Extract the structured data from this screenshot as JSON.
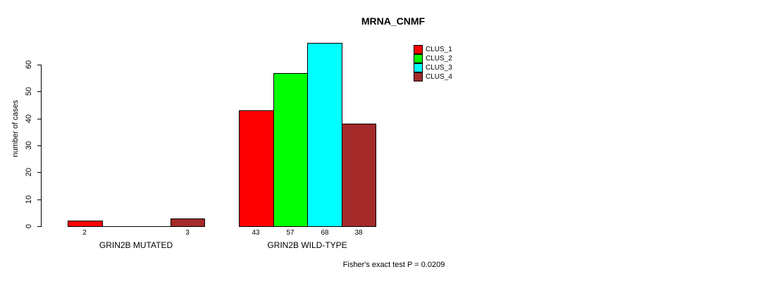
{
  "chart_data": {
    "type": "bar",
    "title": "MRNA_CNMF",
    "xlabel": "",
    "ylabel": "number of cases",
    "categories": [
      "GRIN2B MUTATED",
      "GRIN2B WILD-TYPE"
    ],
    "series": [
      {
        "name": "CLUS_1",
        "color": "#ff0000",
        "values": [
          2,
          43
        ]
      },
      {
        "name": "CLUS_2",
        "color": "#00ff00",
        "values": [
          0,
          57
        ]
      },
      {
        "name": "CLUS_3",
        "color": "#00ffff",
        "values": [
          0,
          68
        ]
      },
      {
        "name": "CLUS_4",
        "color": "#a52a2a",
        "values": [
          3,
          38
        ]
      }
    ],
    "bar_value_labels": [
      [
        "2",
        "",
        "",
        "3"
      ],
      [
        "43",
        "57",
        "68",
        "38"
      ]
    ],
    "yticks": [
      0,
      10,
      20,
      30,
      40,
      50,
      60
    ],
    "ylim": [
      0,
      68
    ],
    "grid": false,
    "legend_position": "top-right",
    "annotation": "Fisher's exact test P = 0.0209"
  }
}
